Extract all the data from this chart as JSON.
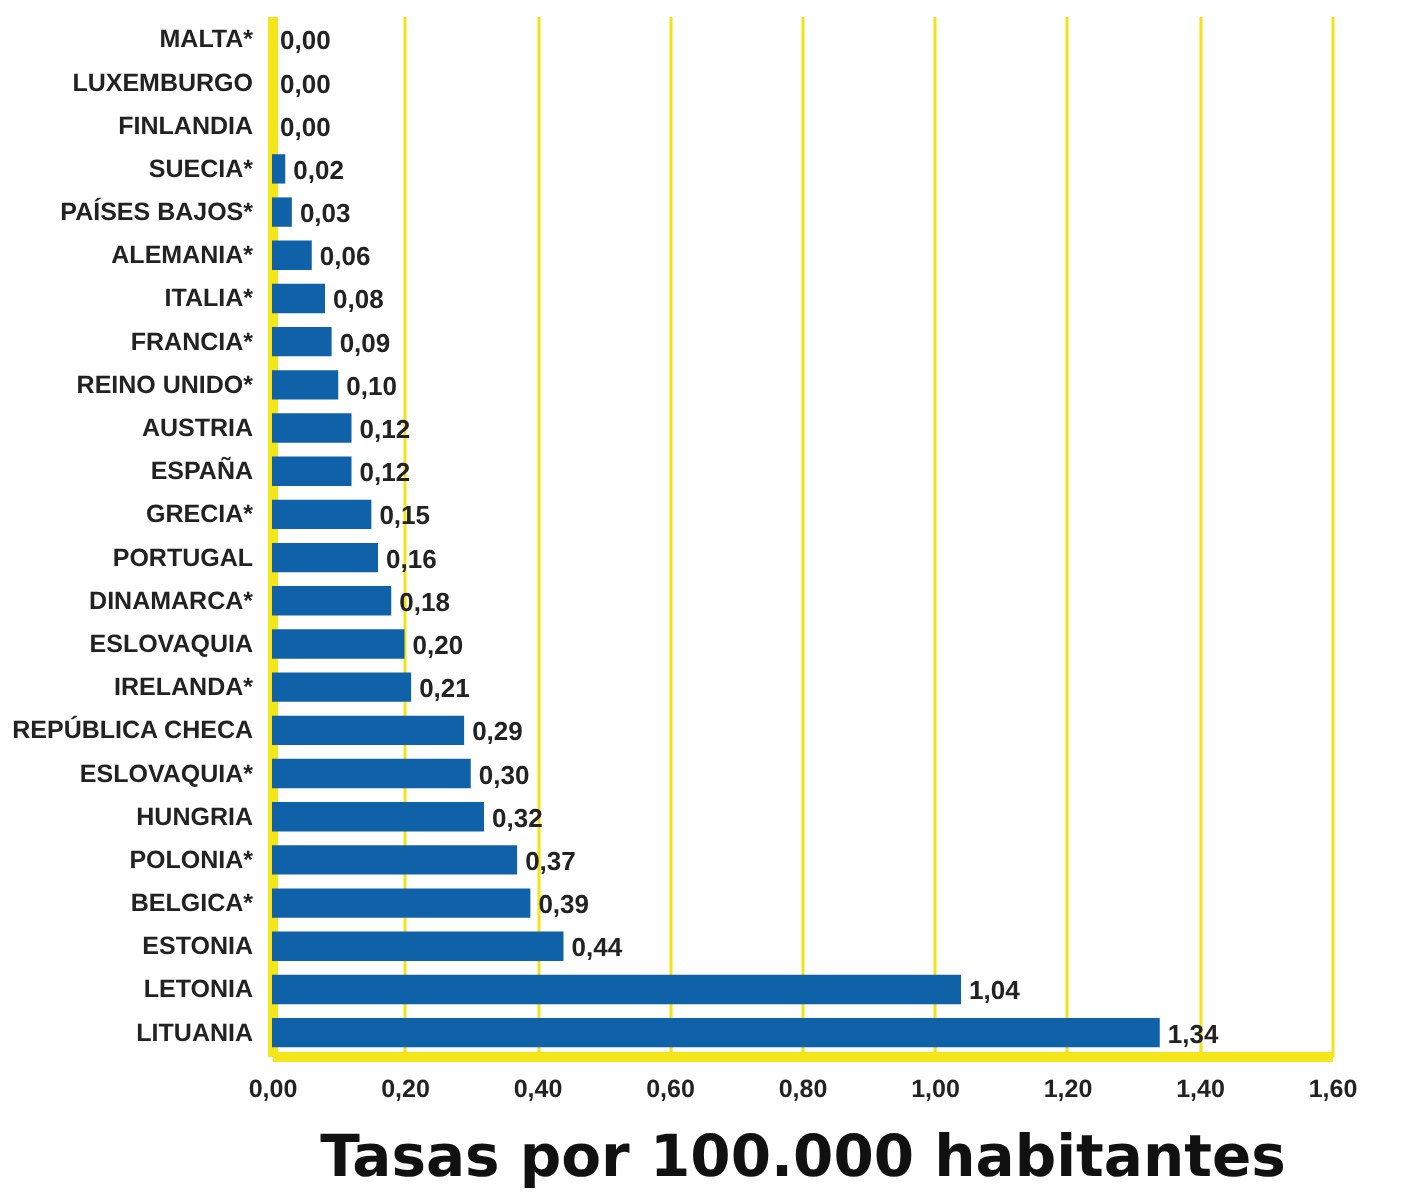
{
  "chart_data": {
    "type": "bar",
    "orientation": "horizontal",
    "xlabel": "Tasas por 100.000 habitantes",
    "categories": [
      "MALTA*",
      "LUXEMBURGO",
      "FINLANDIA",
      "SUECIA*",
      "PAÍSES BAJOS*",
      "ALEMANIA*",
      "ITALIA*",
      "FRANCIA*",
      "REINO UNIDO*",
      "AUSTRIA",
      "ESPAÑA",
      "GRECIA*",
      "PORTUGAL",
      "DINAMARCA*",
      "ESLOVAQUIA",
      "IRELANDA*",
      "REPÚBLICA CHECA",
      "ESLOVAQUIA*",
      "HUNGRIA",
      "POLONIA*",
      "BELGICA*",
      "ESTONIA",
      "LETONIA",
      "LITUANIA"
    ],
    "values": [
      0,
      0,
      0,
      0.02,
      0.03,
      0.06,
      0.08,
      0.09,
      0.1,
      0.12,
      0.12,
      0.15,
      0.16,
      0.18,
      0.2,
      0.21,
      0.29,
      0.3,
      0.32,
      0.37,
      0.39,
      0.44,
      1.04,
      1.34
    ],
    "value_labels": [
      "0,00",
      "0,00",
      "0,00",
      "0,02",
      "0,03",
      "0,06",
      "0,08",
      "0,09",
      "0,10",
      "0,12",
      "0,12",
      "0,15",
      "0,16",
      "0,18",
      "0,20",
      "0,21",
      "0,29",
      "0,30",
      "0,32",
      "0,37",
      "0,39",
      "0,44",
      "1,04",
      "1,34"
    ],
    "color": "#1062a8",
    "xlim": [
      0,
      1.6
    ],
    "xticks": [
      {
        "value": 0,
        "label": "0,00"
      },
      {
        "value": 0.2,
        "label": "0,20"
      },
      {
        "value": 0.4,
        "label": "0,40"
      },
      {
        "value": 0.6,
        "label": "0,60"
      },
      {
        "value": 0.8,
        "label": "0,80"
      },
      {
        "value": 1.0,
        "label": "1,00"
      },
      {
        "value": 1.2,
        "label": "1,20"
      },
      {
        "value": 1.4,
        "label": "1,40"
      },
      {
        "value": 1.6,
        "label": "1,60"
      }
    ],
    "grid": "x"
  }
}
